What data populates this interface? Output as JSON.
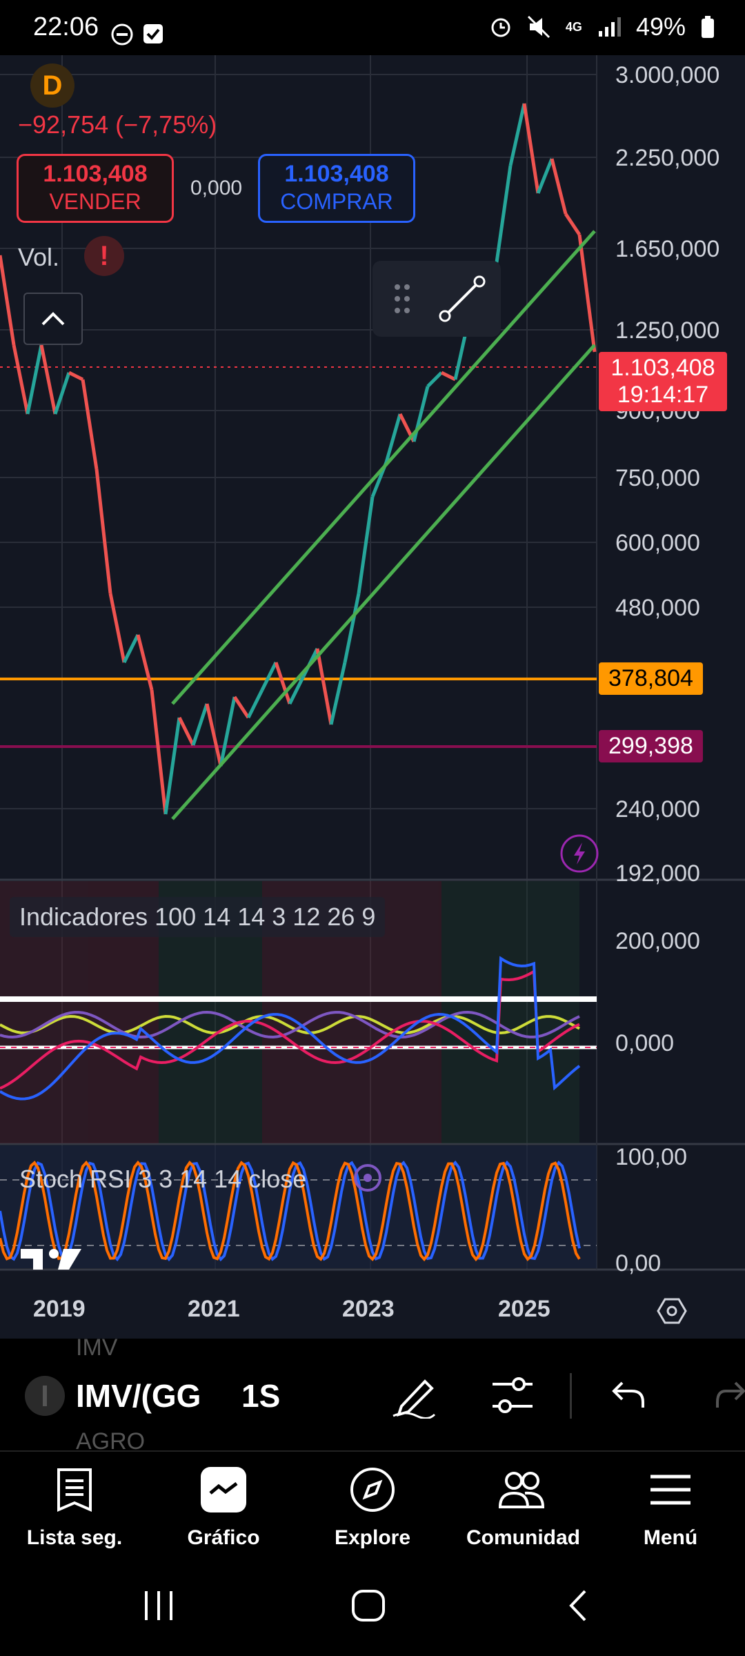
{
  "status_bar": {
    "time": "22:06",
    "battery": "49%",
    "network": "4G",
    "icons": [
      "dnd-icon",
      "checkbox-icon",
      "alarm-icon",
      "mute-icon",
      "signal-icon",
      "battery-icon"
    ]
  },
  "chart": {
    "symbol_logo": "D",
    "change": "−92,754 (−7,75%)",
    "sell": {
      "price": "1.103,408",
      "label": "VENDER"
    },
    "spread": "0,000",
    "buy": {
      "price": "1.103,408",
      "label": "COMPRAR"
    },
    "volume_label": "Vol.",
    "current_price": "1.103,408",
    "countdown": "19:14:17",
    "level_orange": "378,804",
    "level_purple": "299,398",
    "price_axis": [
      "3.000,000",
      "2.250,000",
      "1.650,000",
      "1.250,000",
      "900,000",
      "750,000",
      "600,000",
      "480,000",
      "240,000",
      "192,000"
    ],
    "indicator_label": "Indicadores 100 14 14 3 12 26 9",
    "indicator_axis": [
      "200,000",
      "0,000"
    ],
    "stoch_label": "Stoch RSI 3 3 14 14 close",
    "stoch_axis": [
      "100,00",
      "0,00"
    ],
    "time_axis": [
      "2019",
      "2021",
      "2023",
      "2025"
    ],
    "colors": {
      "background": "#131722",
      "up": "#26a69a",
      "down": "#ef5350",
      "channel": "#4caf50",
      "orange_level": "#ff9800",
      "purple_level": "#880e4f",
      "price_tag": "#f23645"
    }
  },
  "toolbar": {
    "symbol": "IMV/(GG",
    "symbol_above": "IMV",
    "symbol_below": "AGRO",
    "interval": "1S"
  },
  "bottom_nav": [
    {
      "label": "Lista seg.",
      "icon": "watchlist-icon"
    },
    {
      "label": "Gráfico",
      "icon": "chart-icon"
    },
    {
      "label": "Explore",
      "icon": "compass-icon"
    },
    {
      "label": "Comunidad",
      "icon": "community-icon"
    },
    {
      "label": "Menú",
      "icon": "menu-icon"
    }
  ]
}
